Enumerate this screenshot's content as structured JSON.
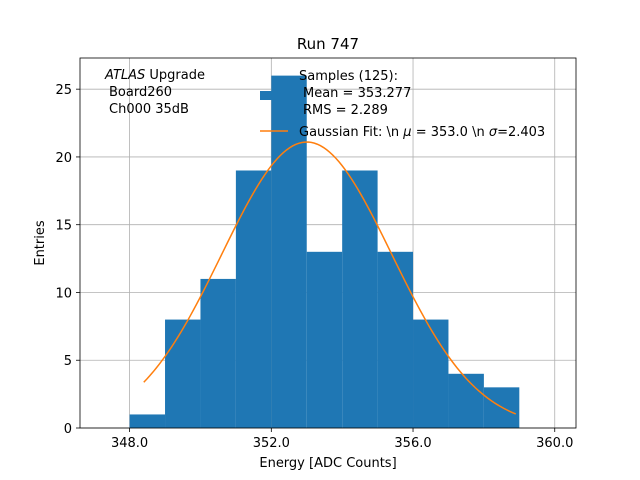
{
  "chart_data": {
    "type": "bar",
    "title": "Run 747",
    "xlabel": "Energy [ADC Counts]",
    "ylabel": "Entries",
    "xlim": [
      346.6,
      360.6
    ],
    "ylim": [
      0,
      27.3
    ],
    "xticks": [
      348.0,
      352.0,
      356.0,
      360.0
    ],
    "xtick_labels": [
      "348.0",
      "352.0",
      "356.0",
      "360.0"
    ],
    "yticks": [
      0,
      5,
      10,
      15,
      20,
      25
    ],
    "ytick_labels": [
      "0",
      "5",
      "10",
      "15",
      "20",
      "25"
    ],
    "grid": true,
    "histogram": {
      "name": "Samples (125):",
      "color": "#1f77b4",
      "bin_edges": [
        348,
        349,
        350,
        351,
        352,
        353,
        354,
        355,
        356,
        357,
        358,
        359
      ],
      "counts": [
        1,
        8,
        11,
        19,
        26,
        13,
        19,
        13,
        8,
        4,
        3
      ]
    },
    "fit": {
      "name": "Gaussian Fit: \\n $\\mu$ = 353.0 \\n $\\sigma$=2.403",
      "color": "#ff7f0e",
      "mu": 353.0,
      "sigma": 2.403,
      "peak": 21.1,
      "x_range": [
        348.4,
        358.9
      ]
    },
    "legend": {
      "placement": "top-center",
      "hist_label": "Samples (125):",
      "hist_mean": "Mean = 353.277",
      "hist_rms": "RMS = 2.289",
      "fit_label_prefix": "Gaussian Fit: \\n ",
      "fit_mu_symbol": "μ",
      "fit_mu_value": " = 353.0 \\n ",
      "fit_sigma_symbol": "σ",
      "fit_sigma_value": "=2.403"
    },
    "annotation": {
      "experiment": "ATLAS",
      "suffix": " Upgrade",
      "board": "Board260",
      "channel": "Ch000 35dB"
    }
  }
}
